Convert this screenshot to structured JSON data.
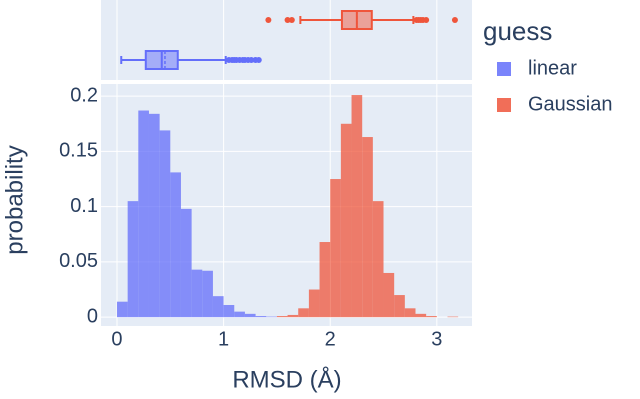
{
  "chart_data": {
    "type": "histogram",
    "x_label": "RMSD (Å)",
    "y_label": "probability",
    "legend_title": "guess",
    "xlim": [
      -0.15,
      3.33
    ],
    "xticks": [
      0,
      1,
      2,
      3
    ],
    "ylim": [
      -0.008,
      0.211
    ],
    "yticks": [
      0,
      0.05,
      0.1,
      0.15,
      0.2
    ],
    "grid": true,
    "series": [
      {
        "name": "linear",
        "color": "#636efa",
        "bins": [
          0,
          0.1,
          0.2,
          0.3,
          0.4,
          0.5,
          0.6,
          0.7,
          0.8,
          0.9,
          1.0,
          1.1,
          1.2,
          1.3,
          1.4,
          1.5
        ],
        "values": [
          0.014,
          0.105,
          0.187,
          0.184,
          0.169,
          0.131,
          0.098,
          0.043,
          0.042,
          0.019,
          0.011,
          0.005,
          0.003,
          0.001,
          0.0005
        ],
        "box": {
          "lowerfence": 0.04,
          "q1": 0.27,
          "median": 0.42,
          "q3": 0.57,
          "upperfence": 1.02,
          "mean": 0.45,
          "outliers": [
            1.05,
            1.08,
            1.1,
            1.12,
            1.15,
            1.18,
            1.2,
            1.23,
            1.26,
            1.3,
            1.33
          ]
        }
      },
      {
        "name": "Gaussian",
        "color": "#ef553b",
        "bins": [
          1.5,
          1.6,
          1.7,
          1.8,
          1.9,
          2.0,
          2.1,
          2.2,
          2.3,
          2.4,
          2.5,
          2.6,
          2.7,
          2.8,
          2.9,
          3.0,
          3.1,
          3.2
        ],
        "values": [
          0.001,
          0.002,
          0.008,
          0.025,
          0.068,
          0.125,
          0.175,
          0.201,
          0.163,
          0.105,
          0.04,
          0.02,
          0.008,
          0.003,
          0.001,
          0,
          0.0005
        ],
        "box": {
          "lowerfence": 1.72,
          "q1": 2.11,
          "median": 2.25,
          "q3": 2.39,
          "upperfence": 2.78,
          "mean": 2.25,
          "outliers": [
            1.42,
            1.6,
            1.64,
            2.81,
            2.83,
            2.85,
            2.87,
            2.9,
            3.17
          ]
        }
      }
    ]
  }
}
